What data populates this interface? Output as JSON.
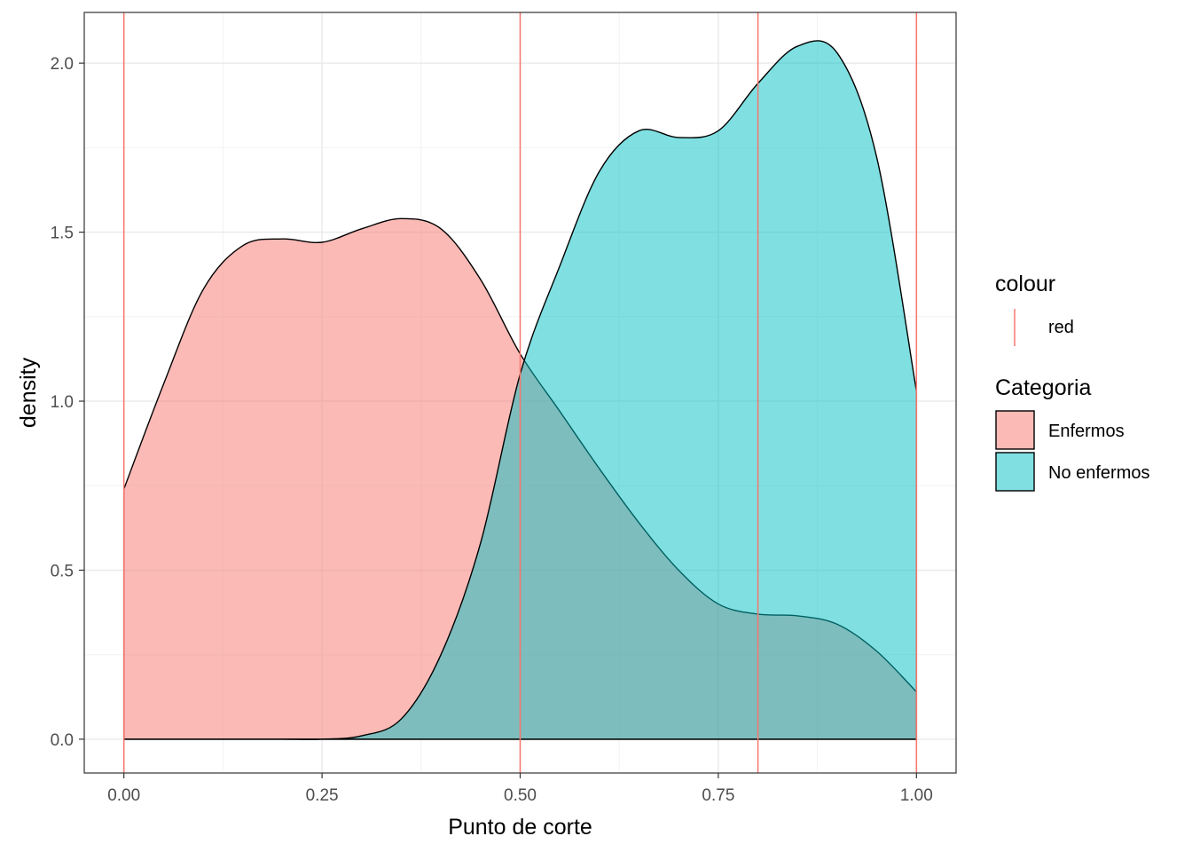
{
  "chart_data": {
    "type": "area",
    "xlabel": "Punto de corte",
    "ylabel": "density",
    "xlim": [
      -0.05,
      1.05
    ],
    "ylim": [
      -0.1,
      2.15
    ],
    "x_ticks": [
      0.0,
      0.25,
      0.5,
      0.75,
      1.0
    ],
    "x_tick_labels": [
      "0.00",
      "0.25",
      "0.50",
      "0.75",
      "1.00"
    ],
    "y_ticks": [
      0.0,
      0.5,
      1.0,
      1.5,
      2.0
    ],
    "y_tick_labels": [
      "0.0",
      "0.5",
      "1.0",
      "1.5",
      "2.0"
    ],
    "grid": true,
    "legend_position": "right",
    "series": [
      {
        "name": "Enfermos",
        "color": "#F8766D",
        "x": [
          0.0,
          0.05,
          0.1,
          0.15,
          0.2,
          0.25,
          0.3,
          0.35,
          0.4,
          0.45,
          0.5,
          0.55,
          0.6,
          0.65,
          0.7,
          0.75,
          0.8,
          0.85,
          0.9,
          0.95,
          1.0
        ],
        "y": [
          0.74,
          1.05,
          1.33,
          1.46,
          1.48,
          1.47,
          1.51,
          1.54,
          1.51,
          1.36,
          1.14,
          0.97,
          0.8,
          0.64,
          0.5,
          0.4,
          0.37,
          0.365,
          0.34,
          0.26,
          0.14
        ]
      },
      {
        "name": "No enfermos",
        "color": "#00BFC4",
        "x": [
          0.0,
          0.05,
          0.1,
          0.15,
          0.2,
          0.25,
          0.3,
          0.35,
          0.4,
          0.45,
          0.5,
          0.55,
          0.6,
          0.65,
          0.7,
          0.75,
          0.8,
          0.85,
          0.9,
          0.95,
          1.0
        ],
        "y": [
          0.0,
          0.0,
          0.0,
          0.0,
          0.0,
          0.0,
          0.01,
          0.06,
          0.25,
          0.58,
          1.08,
          1.4,
          1.68,
          1.8,
          1.78,
          1.8,
          1.94,
          2.05,
          2.03,
          1.72,
          1.03
        ]
      }
    ],
    "vlines": [
      0.0,
      0.5,
      0.8,
      1.0
    ],
    "vline_color": "#F8766D",
    "legends": [
      {
        "title": "colour",
        "items": [
          {
            "label": "red",
            "color": "#F8766D",
            "key": "line"
          }
        ]
      },
      {
        "title": "Categoria",
        "items": [
          {
            "label": "Enfermos",
            "color": "#F8766D",
            "key": "fill"
          },
          {
            "label": "No enfermos",
            "color": "#00BFC4",
            "key": "fill"
          }
        ]
      }
    ]
  }
}
